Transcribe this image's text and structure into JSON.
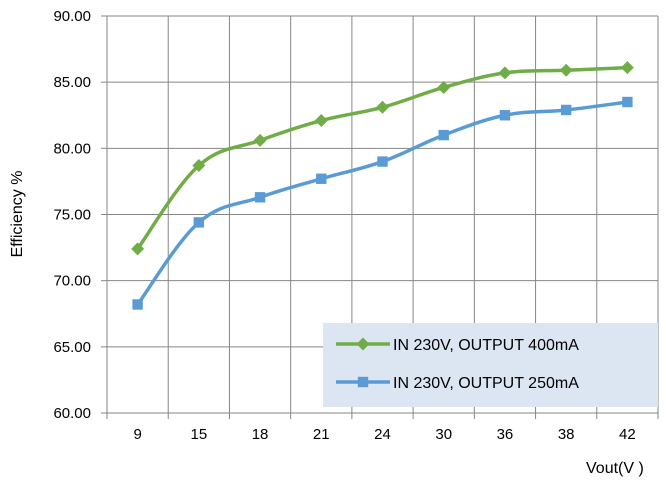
{
  "chart_data": {
    "type": "line",
    "title": "",
    "xlabel": "Vout(V )",
    "ylabel": "Efficiency %",
    "categories": [
      "9",
      "15",
      "18",
      "21",
      "24",
      "30",
      "36",
      "38",
      "42"
    ],
    "ylim": [
      60,
      90
    ],
    "yticks": [
      "60.00",
      "65.00",
      "70.00",
      "75.00",
      "80.00",
      "85.00",
      "90.00"
    ],
    "grid": true,
    "legend_position": "bottom-right",
    "series": [
      {
        "name": "IN 230V, OUTPUT 400mA",
        "color": "#70ad47",
        "marker": "diamond",
        "values": [
          72.4,
          78.7,
          80.6,
          82.1,
          83.1,
          84.6,
          85.7,
          85.9,
          86.1
        ]
      },
      {
        "name": "IN 230V, OUTPUT 250mA",
        "color": "#5b9bd5",
        "marker": "square",
        "values": [
          68.2,
          74.4,
          76.3,
          77.7,
          79.0,
          81.0,
          82.5,
          82.9,
          83.5
        ]
      }
    ]
  }
}
